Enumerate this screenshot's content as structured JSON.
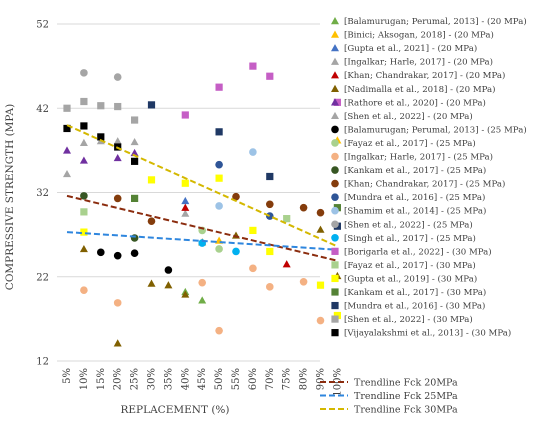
{
  "chart_data": {
    "type": "scatter",
    "ylabel": "COMPRESSIVE STRENGTH (MPA)",
    "xlabel": "REPLACEMENT (%)",
    "ylim": [
      12,
      52
    ],
    "yticks": [
      "12",
      "22",
      "32",
      "42",
      "52"
    ],
    "categories": [
      "5%",
      "10%",
      "15%",
      "20%",
      "25%",
      "30%",
      "35%",
      "40%",
      "45%",
      "50%",
      "55%",
      "60%",
      "70%",
      "75%",
      "80%",
      "90%",
      "100%"
    ],
    "grid": "horizontal",
    "legend_position": "right",
    "series": [
      {
        "name": "[Balamurugan; Perumal, 2013] - (20 MPa)",
        "marker": "triangle",
        "color": "#70ad47",
        "points": [
          [
            7,
            20.2
          ],
          [
            8,
            19.2
          ]
        ]
      },
      {
        "name": "[Binici; Aksogan, 2018] - (20 MPa)",
        "marker": "triangle",
        "color": "#ffc000",
        "points": [
          [
            9,
            26.3
          ],
          [
            16,
            38.2
          ]
        ]
      },
      {
        "name": "[Gupta et al., 2021] - (20 MPa)",
        "marker": "triangle",
        "color": "#4472c4",
        "points": [
          [
            7,
            31.0
          ]
        ]
      },
      {
        "name": "[Ingalkar; Harle, 2017] - (20 MPa)",
        "marker": "triangle",
        "color": "#a5a5a5",
        "points": [
          [
            7,
            29.5
          ]
        ]
      },
      {
        "name": "[Khan; Chandrakar, 2017] - (20 MPa)",
        "marker": "triangle",
        "color": "#c00000",
        "points": [
          [
            7,
            30.2
          ],
          [
            13,
            23.5
          ]
        ]
      },
      {
        "name": "[Nadimalla et al., 2018] - (20 MPa)",
        "marker": "triangle",
        "color": "#806000",
        "points": [
          [
            1,
            25.3
          ],
          [
            3,
            14.1
          ],
          [
            5,
            21.2
          ],
          [
            6,
            21.0
          ],
          [
            7,
            19.9
          ],
          [
            8,
            26.1
          ],
          [
            10,
            26.9
          ],
          [
            15,
            27.6
          ],
          [
            16,
            22.1
          ]
        ]
      },
      {
        "name": "[Rathore et al., 2020] - (20 MPa)",
        "marker": "triangle",
        "color": "#7030a0",
        "points": [
          [
            0,
            37.0
          ],
          [
            1,
            35.8
          ],
          [
            3,
            36.1
          ],
          [
            4,
            36.7
          ]
        ]
      },
      {
        "name": "[Shen et al., 2022] - (20 MPa)",
        "marker": "triangle",
        "color": "#a5a5a5",
        "points": [
          [
            0,
            34.2
          ],
          [
            1,
            37.9
          ],
          [
            2,
            38.1
          ],
          [
            3,
            38.1
          ],
          [
            4,
            38.0
          ]
        ]
      },
      {
        "name": "[Balamurugan; Perumal, 2013] - (25 MPa)",
        "marker": "circle",
        "color": "#000000",
        "points": [
          [
            2,
            24.9
          ],
          [
            3,
            24.5
          ],
          [
            4,
            24.8
          ],
          [
            6,
            22.8
          ]
        ]
      },
      {
        "name": "[Fayaz et al., 2017] - (25 MPa)",
        "marker": "circle",
        "color": "#a9d18e",
        "points": [
          [
            8,
            27.5
          ],
          [
            9,
            25.3
          ]
        ]
      },
      {
        "name": "[Ingalkar; Harle, 2017] - (25 MPa)",
        "marker": "circle",
        "color": "#f4b183",
        "points": [
          [
            1,
            20.4
          ],
          [
            3,
            18.9
          ],
          [
            8,
            21.3
          ],
          [
            9,
            15.6
          ],
          [
            11,
            23.0
          ],
          [
            12,
            20.8
          ],
          [
            14,
            21.4
          ],
          [
            15,
            16.8
          ]
        ]
      },
      {
        "name": "[Kankam et al., 2017] - (25 MPa)",
        "marker": "circle",
        "color": "#375623",
        "points": [
          [
            1,
            31.6
          ],
          [
            4,
            26.6
          ]
        ]
      },
      {
        "name": "[Khan; Chandrakar, 2017] - (25 MPa)",
        "marker": "circle",
        "color": "#843c0c",
        "points": [
          [
            3,
            31.3
          ],
          [
            5,
            28.6
          ],
          [
            10,
            31.5
          ],
          [
            12,
            30.6
          ],
          [
            14,
            30.2
          ],
          [
            15,
            29.6
          ]
        ]
      },
      {
        "name": "[Mundra et al., 2016] - (25 MPa)",
        "marker": "circle",
        "color": "#2f5597",
        "points": [
          [
            9,
            35.3
          ],
          [
            12,
            29.2
          ]
        ]
      },
      {
        "name": "[Shamim et al., 2014] - (25 MPa)",
        "marker": "circle",
        "color": "#9dc3e6",
        "points": [
          [
            9,
            30.4
          ],
          [
            11,
            36.8
          ]
        ]
      },
      {
        "name": "[Shen et al., 2022] - (25 MPa)",
        "marker": "circle",
        "color": "#a5a5a5",
        "points": [
          [
            1,
            46.2
          ],
          [
            3,
            45.7
          ]
        ]
      },
      {
        "name": "[Singh et al., 2017] - (25 MPa)",
        "marker": "circle",
        "color": "#00b0f0",
        "points": [
          [
            8,
            26.0
          ],
          [
            10,
            25.0
          ]
        ]
      },
      {
        "name": "[Borigarla et al., 2022] - (30 MPa)",
        "marker": "square",
        "color": "#c55ec5",
        "points": [
          [
            7,
            41.2
          ],
          [
            9,
            44.5
          ],
          [
            11,
            47.0
          ],
          [
            12,
            45.8
          ],
          [
            16,
            42.7
          ]
        ]
      },
      {
        "name": "[Fayaz et al., 2017] - (30 MPa)",
        "marker": "square",
        "color": "#a9d18e",
        "points": [
          [
            1,
            29.7
          ],
          [
            13,
            28.9
          ]
        ]
      },
      {
        "name": "[Gupta et al., 2019] - (30 MPa)",
        "marker": "square",
        "color": "#ffff00",
        "points": [
          [
            1,
            27.3
          ],
          [
            5,
            33.5
          ],
          [
            7,
            33.1
          ],
          [
            9,
            33.7
          ],
          [
            11,
            27.5
          ],
          [
            12,
            25.0
          ],
          [
            15,
            21.0
          ],
          [
            16,
            17.4
          ]
        ]
      },
      {
        "name": "[Kankam et al., 2017] - (30 MPa)",
        "marker": "square",
        "color": "#548235",
        "points": [
          [
            4,
            31.3
          ],
          [
            16,
            30.2
          ]
        ]
      },
      {
        "name": "[Mundra et al., 2016] - (30 MPa)",
        "marker": "square",
        "color": "#1f3864",
        "points": [
          [
            5,
            42.4
          ],
          [
            9,
            39.2
          ],
          [
            12,
            33.9
          ],
          [
            16,
            28.0
          ]
        ]
      },
      {
        "name": "[Shen et al., 2022] - (30 MPa)",
        "marker": "square",
        "color": "#a5a5a5",
        "points": [
          [
            0,
            42.0
          ],
          [
            1,
            42.8
          ],
          [
            2,
            42.3
          ],
          [
            3,
            42.2
          ],
          [
            4,
            40.6
          ]
        ]
      },
      {
        "name": "[Vijayalakshmi et al., 2013] - (30 MPa)",
        "marker": "square",
        "color": "#000000",
        "points": [
          [
            0,
            39.6
          ],
          [
            1,
            39.9
          ],
          [
            2,
            38.6
          ],
          [
            3,
            37.4
          ],
          [
            4,
            35.7
          ]
        ]
      }
    ],
    "trendlines": [
      {
        "name": "Trendline Fck 20MPa",
        "color": "#8b2c0e",
        "start": [
          0,
          31.6
        ],
        "end": [
          16,
          23.9
        ]
      },
      {
        "name": "Trendline Fck 25MPa",
        "color": "#2e86de",
        "start": [
          0,
          27.3
        ],
        "end": [
          16,
          25.2
        ]
      },
      {
        "name": "Trendline Fck 30MPa",
        "color": "#d4b800",
        "start": [
          0,
          40.0
        ],
        "end": [
          16,
          25.6
        ]
      }
    ]
  }
}
